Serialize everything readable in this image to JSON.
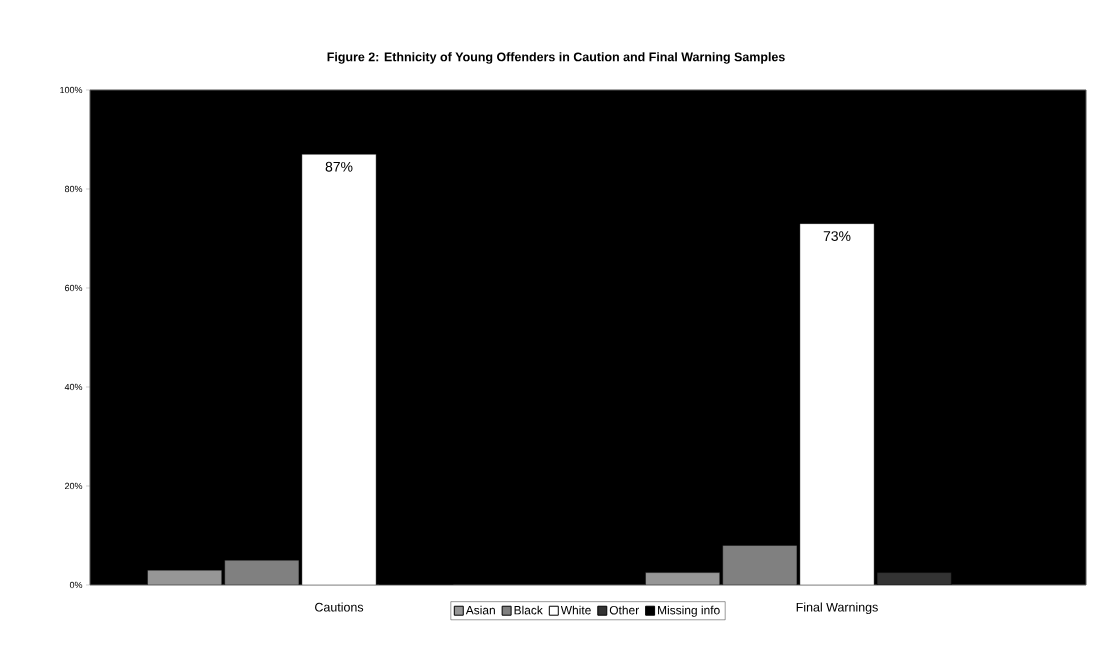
{
  "chart_data": {
    "type": "bar",
    "title": "Figure 2:  Ethnicity of Young Offenders in Caution and Final Warning Samples",
    "categories": [
      "Cautions",
      "Final Warnings"
    ],
    "series": [
      {
        "name": "Asian",
        "color": "#969696",
        "values": [
          3,
          2.5
        ]
      },
      {
        "name": "Black",
        "color": "#808080",
        "values": [
          5,
          8
        ]
      },
      {
        "name": "White",
        "color": "#ffffff",
        "values": [
          87,
          73
        ],
        "value_labels": [
          "87%",
          "73%"
        ]
      },
      {
        "name": "Other",
        "color": "#333333",
        "values": [
          0,
          2.5
        ]
      },
      {
        "name": "Missing info",
        "color": "#000000",
        "values": [
          null,
          null
        ]
      }
    ],
    "ylim": [
      0,
      100
    ],
    "yticks": [
      {
        "value": 0,
        "label": "0%"
      },
      {
        "value": 20,
        "label": "20%"
      },
      {
        "value": 40,
        "label": "40%"
      },
      {
        "value": 60,
        "label": "60%"
      },
      {
        "value": 80,
        "label": "80%"
      },
      {
        "value": 100,
        "label": "100%"
      }
    ],
    "legend": "bottom",
    "grid": false
  }
}
